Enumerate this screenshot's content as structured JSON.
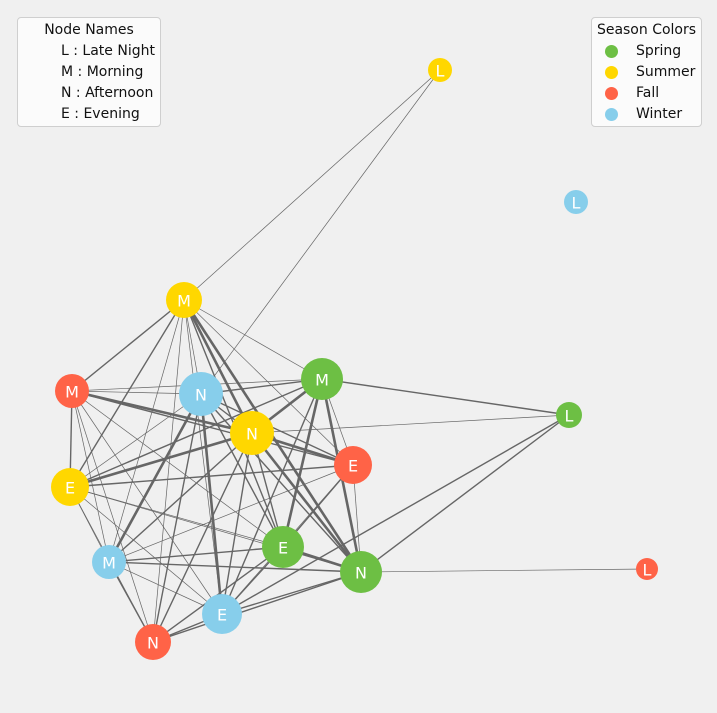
{
  "legend_names": {
    "title": "Node Names",
    "items": [
      {
        "label": "L : Late Night"
      },
      {
        "label": "M : Morning"
      },
      {
        "label": "N : Afternoon"
      },
      {
        "label": "E : Evening"
      }
    ]
  },
  "legend_seasons": {
    "title": "Season Colors",
    "items": [
      {
        "label": "Spring",
        "color": "#6dbf44"
      },
      {
        "label": "Summer",
        "color": "#ffd700"
      },
      {
        "label": "Fall",
        "color": "#ff6347"
      },
      {
        "label": "Winter",
        "color": "#87ceeb"
      }
    ]
  },
  "colors": {
    "spring": "#6dbf44",
    "summer": "#ffd700",
    "fall": "#ff6347",
    "winter": "#87ceeb",
    "edge": "#666666"
  },
  "nodes": [
    {
      "id": "sumL",
      "label": "L",
      "season": "summer"
    },
    {
      "id": "winL",
      "label": "L",
      "season": "winter"
    },
    {
      "id": "sumM",
      "label": "M",
      "season": "summer"
    },
    {
      "id": "falM",
      "label": "M",
      "season": "fall"
    },
    {
      "id": "winN",
      "label": "N",
      "season": "winter"
    },
    {
      "id": "sprM",
      "label": "M",
      "season": "spring"
    },
    {
      "id": "sprL",
      "label": "L",
      "season": "spring"
    },
    {
      "id": "sumN",
      "label": "N",
      "season": "summer"
    },
    {
      "id": "falE",
      "label": "E",
      "season": "fall"
    },
    {
      "id": "sumE",
      "label": "E",
      "season": "summer"
    },
    {
      "id": "winM",
      "label": "M",
      "season": "winter"
    },
    {
      "id": "sprE",
      "label": "E",
      "season": "spring"
    },
    {
      "id": "sprN",
      "label": "N",
      "season": "spring"
    },
    {
      "id": "falL",
      "label": "L",
      "season": "fall"
    },
    {
      "id": "winE",
      "label": "E",
      "season": "winter"
    },
    {
      "id": "falN",
      "label": "N",
      "season": "fall"
    }
  ],
  "edges": [
    {
      "source": "sumL",
      "target": "sumM",
      "weight": 1
    },
    {
      "source": "sumL",
      "target": "winN",
      "weight": 1
    },
    {
      "source": "sumM",
      "target": "falM",
      "weight": 2
    },
    {
      "source": "sumM",
      "target": "winN",
      "weight": 1
    },
    {
      "source": "sumM",
      "target": "sumN",
      "weight": 3
    },
    {
      "source": "sumM",
      "target": "sprM",
      "weight": 1
    },
    {
      "source": "sumM",
      "target": "falE",
      "weight": 1
    },
    {
      "source": "sumM",
      "target": "sumE",
      "weight": 2
    },
    {
      "source": "sumM",
      "target": "winM",
      "weight": 1
    },
    {
      "source": "sumM",
      "target": "sprE",
      "weight": 2
    },
    {
      "source": "sumM",
      "target": "sprN",
      "weight": 3
    },
    {
      "source": "sumM",
      "target": "winE",
      "weight": 1
    },
    {
      "source": "sumM",
      "target": "falN",
      "weight": 1
    },
    {
      "source": "falM",
      "target": "winN",
      "weight": 1
    },
    {
      "source": "falM",
      "target": "sprM",
      "weight": 1
    },
    {
      "source": "falM",
      "target": "sumN",
      "weight": 3
    },
    {
      "source": "falM",
      "target": "falE",
      "weight": 2
    },
    {
      "source": "falM",
      "target": "sumE",
      "weight": 2
    },
    {
      "source": "falM",
      "target": "winM",
      "weight": 1
    },
    {
      "source": "falM",
      "target": "sprE",
      "weight": 1
    },
    {
      "source": "falM",
      "target": "winE",
      "weight": 1
    },
    {
      "source": "falM",
      "target": "falN",
      "weight": 1
    },
    {
      "source": "winN",
      "target": "sprM",
      "weight": 2
    },
    {
      "source": "winN",
      "target": "sumN",
      "weight": 2
    },
    {
      "source": "winN",
      "target": "falE",
      "weight": 2
    },
    {
      "source": "winN",
      "target": "sumE",
      "weight": 1
    },
    {
      "source": "winN",
      "target": "winM",
      "weight": 3
    },
    {
      "source": "winN",
      "target": "sprE",
      "weight": 2
    },
    {
      "source": "winN",
      "target": "sprN",
      "weight": 2
    },
    {
      "source": "winN",
      "target": "winE",
      "weight": 3
    },
    {
      "source": "winN",
      "target": "falN",
      "weight": 2
    },
    {
      "source": "sprM",
      "target": "sprL",
      "weight": 2
    },
    {
      "source": "sprM",
      "target": "sumN",
      "weight": 3
    },
    {
      "source": "sprM",
      "target": "sumE",
      "weight": 2
    },
    {
      "source": "sprM",
      "target": "sprE",
      "weight": 3
    },
    {
      "source": "sprM",
      "target": "sprN",
      "weight": 3
    },
    {
      "source": "sprM",
      "target": "winE",
      "weight": 2
    },
    {
      "source": "sprM",
      "target": "falE",
      "weight": 1
    },
    {
      "source": "sprL",
      "target": "sumN",
      "weight": 1
    },
    {
      "source": "sprL",
      "target": "sprN",
      "weight": 2
    },
    {
      "source": "sprL",
      "target": "winE",
      "weight": 2
    },
    {
      "source": "sumN",
      "target": "falE",
      "weight": 3
    },
    {
      "source": "sumN",
      "target": "sumE",
      "weight": 3
    },
    {
      "source": "sumN",
      "target": "winM",
      "weight": 2
    },
    {
      "source": "sumN",
      "target": "sprE",
      "weight": 2
    },
    {
      "source": "sumN",
      "target": "sprN",
      "weight": 3
    },
    {
      "source": "sumN",
      "target": "winE",
      "weight": 2
    },
    {
      "source": "sumN",
      "target": "falN",
      "weight": 2
    },
    {
      "source": "falE",
      "target": "sumE",
      "weight": 2
    },
    {
      "source": "falE",
      "target": "winM",
      "weight": 1
    },
    {
      "source": "falE",
      "target": "sprE",
      "weight": 2
    },
    {
      "source": "falE",
      "target": "sprN",
      "weight": 1
    },
    {
      "source": "falE",
      "target": "winE",
      "weight": 1
    },
    {
      "source": "sumE",
      "target": "winM",
      "weight": 1
    },
    {
      "source": "sumE",
      "target": "sprE",
      "weight": 1
    },
    {
      "source": "sumE",
      "target": "sprN",
      "weight": 1
    },
    {
      "source": "sumE",
      "target": "winE",
      "weight": 1
    },
    {
      "source": "sumE",
      "target": "falN",
      "weight": 1
    },
    {
      "source": "winM",
      "target": "sprE",
      "weight": 2
    },
    {
      "source": "winM",
      "target": "sprN",
      "weight": 2
    },
    {
      "source": "winM",
      "target": "falN",
      "weight": 2
    },
    {
      "source": "winM",
      "target": "winE",
      "weight": 1
    },
    {
      "source": "sprE",
      "target": "sprN",
      "weight": 3
    },
    {
      "source": "sprE",
      "target": "winE",
      "weight": 2
    },
    {
      "source": "sprE",
      "target": "falN",
      "weight": 2
    },
    {
      "source": "sprN",
      "target": "falN",
      "weight": 2
    },
    {
      "source": "sprN",
      "target": "winE",
      "weight": 2
    },
    {
      "source": "sprN",
      "target": "falL",
      "weight": 1
    },
    {
      "source": "winE",
      "target": "falN",
      "weight": 2
    }
  ]
}
